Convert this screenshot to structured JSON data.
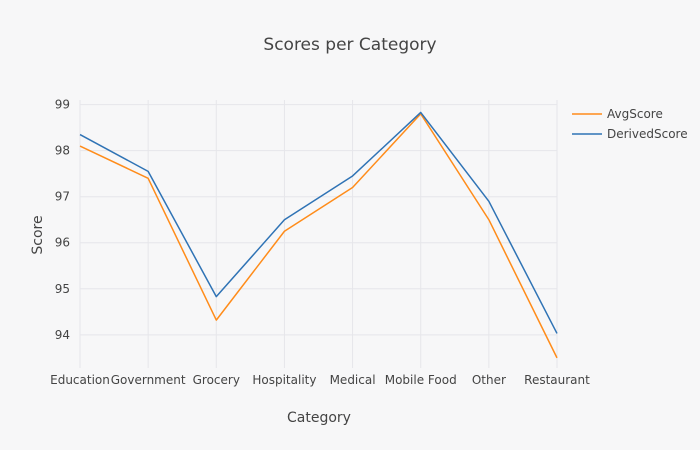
{
  "chart_data": {
    "type": "line",
    "title": "Scores per Category",
    "xlabel": "Category",
    "ylabel": "Score",
    "categories": [
      "Education",
      "Government",
      "Grocery",
      "Hospitality",
      "Medical",
      "Mobile Food",
      "Other",
      "Restaurant"
    ],
    "yticks": [
      94,
      95,
      96,
      97,
      98,
      99
    ],
    "ylim": [
      93.28,
      99.1
    ],
    "grid": true,
    "legend_position": "top-right",
    "series": [
      {
        "name": "AvgScore",
        "color": "#ff8c1a",
        "values": [
          98.1,
          97.4,
          94.32,
          96.25,
          97.2,
          98.8,
          96.5,
          93.5
        ]
      },
      {
        "name": "DerivedScore",
        "color": "#2f73b5",
        "values": [
          98.35,
          97.55,
          94.83,
          96.5,
          97.45,
          98.83,
          96.9,
          94.03
        ]
      }
    ]
  }
}
